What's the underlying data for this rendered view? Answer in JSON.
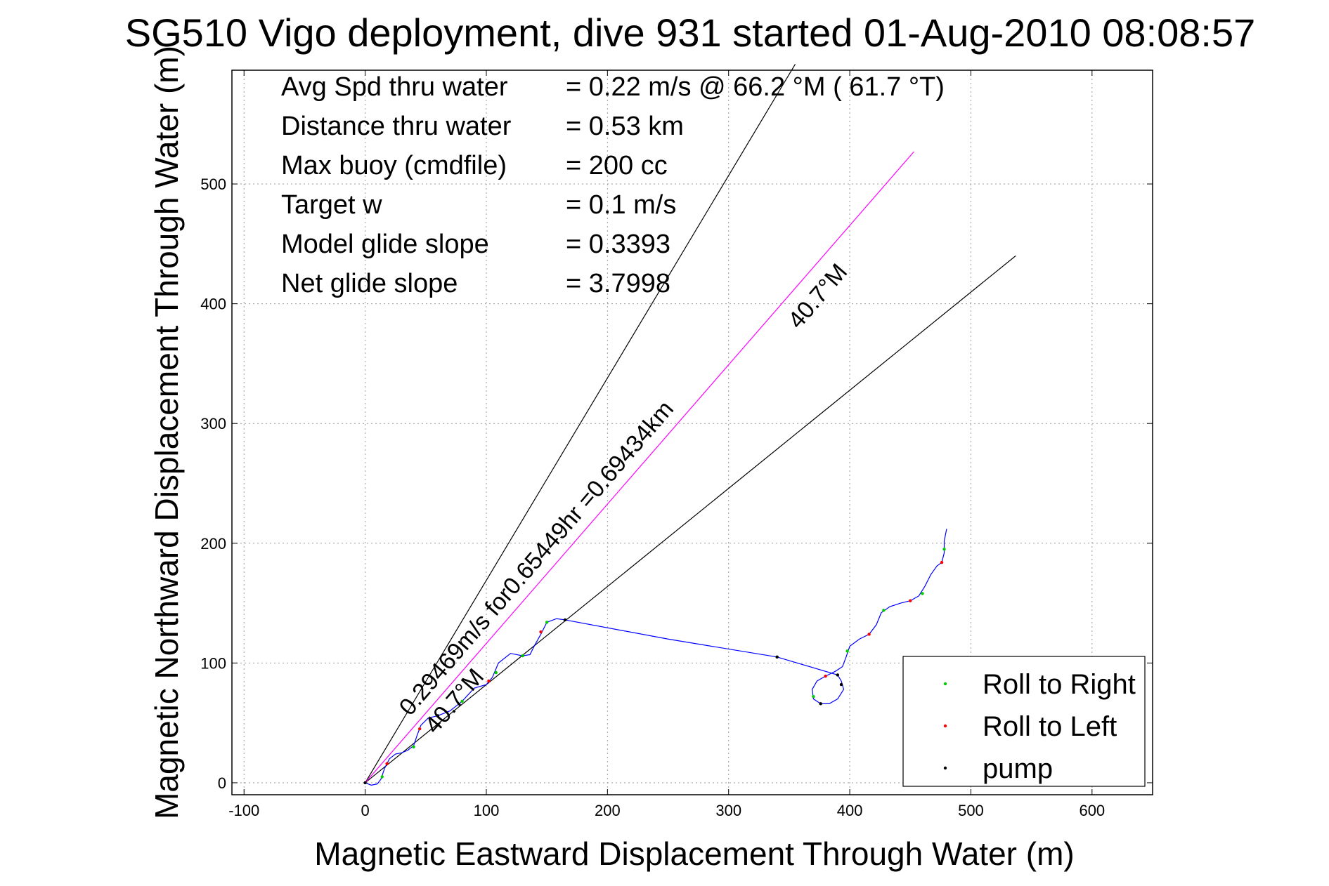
{
  "chart_data": {
    "type": "line",
    "title": "SG510 Vigo deployment, dive 931 started 01-Aug-2010 08:08:57",
    "xlabel": "Magnetic Eastward Displacement Through Water (m)",
    "ylabel": "Magnetic Northward Displacement Through Water (m)",
    "xlim": [
      -110,
      650
    ],
    "ylim": [
      -10,
      595
    ],
    "xticks": [
      -100,
      0,
      100,
      200,
      300,
      400,
      500,
      600
    ],
    "yticks": [
      0,
      100,
      200,
      300,
      400,
      500
    ],
    "grid": true,
    "info": [
      {
        "label": "Avg Spd thru water",
        "value": "=  0.22 m/s @  66.2 °M ( 61.7 °T)"
      },
      {
        "label": "Distance thru water",
        "value": "=  0.53 km"
      },
      {
        "label": "Max buoy (cmdfile)",
        "value": "= 200 cc"
      },
      {
        "label": "Target w",
        "value": "= 0.1 m/s"
      },
      {
        "label": "Model glide slope",
        "value": "= 0.3393"
      },
      {
        "label": "Net glide slope",
        "value": "= 3.7998"
      }
    ],
    "annotations": [
      {
        "text": "0.29469m/s for0.65449hr =0.69434km",
        "x": 37,
        "y": 55,
        "angle_deg": 49.3
      },
      {
        "text": "40.7°M",
        "x": 58,
        "y": 40,
        "angle_deg": 49.3
      },
      {
        "text": "40.7°M",
        "x": 358,
        "y": 378,
        "angle_deg": 49.3
      }
    ],
    "guide_lines": [
      {
        "name": "upper-guide",
        "color": "#000000",
        "points": [
          [
            0,
            0
          ],
          [
            355,
            600
          ]
        ]
      },
      {
        "name": "lower-guide",
        "color": "#000000",
        "points": [
          [
            0,
            0
          ],
          [
            537,
            440
          ]
        ]
      },
      {
        "name": "heading-line",
        "color": "#ff00ff",
        "points": [
          [
            0,
            0
          ],
          [
            453,
            527
          ]
        ]
      }
    ],
    "series": [
      {
        "name": "track",
        "color": "#0000ff",
        "points": [
          [
            0,
            0
          ],
          [
            5,
            -2
          ],
          [
            10,
            -1
          ],
          [
            13,
            3
          ],
          [
            16,
            12
          ],
          [
            20,
            20
          ],
          [
            25,
            24
          ],
          [
            30,
            25
          ],
          [
            35,
            27
          ],
          [
            40,
            31
          ],
          [
            43,
            40
          ],
          [
            46,
            48
          ],
          [
            52,
            54
          ],
          [
            60,
            56
          ],
          [
            70,
            60
          ],
          [
            80,
            68
          ],
          [
            90,
            79
          ],
          [
            100,
            82
          ],
          [
            105,
            88
          ],
          [
            110,
            100
          ],
          [
            120,
            108
          ],
          [
            130,
            106
          ],
          [
            136,
            107
          ],
          [
            140,
            115
          ],
          [
            145,
            124
          ],
          [
            150,
            134
          ],
          [
            158,
            137
          ],
          [
            165,
            136
          ],
          [
            250,
            120
          ],
          [
            340,
            105
          ],
          [
            390,
            90
          ],
          [
            393,
            85
          ],
          [
            395,
            78
          ],
          [
            390,
            70
          ],
          [
            383,
            66
          ],
          [
            376,
            66
          ],
          [
            370,
            70
          ],
          [
            369,
            78
          ],
          [
            373,
            85
          ],
          [
            380,
            89
          ],
          [
            388,
            93
          ],
          [
            394,
            97
          ],
          [
            397,
            105
          ],
          [
            400,
            114
          ],
          [
            408,
            120
          ],
          [
            416,
            124
          ],
          [
            422,
            132
          ],
          [
            426,
            142
          ],
          [
            433,
            147
          ],
          [
            442,
            150
          ],
          [
            450,
            152
          ],
          [
            457,
            156
          ],
          [
            462,
            164
          ],
          [
            467,
            174
          ],
          [
            472,
            181
          ],
          [
            476,
            184
          ],
          [
            478,
            192
          ],
          [
            478,
            202
          ],
          [
            480,
            212
          ]
        ]
      },
      {
        "name": "Roll to Right",
        "color": "#00cc00",
        "points": [
          [
            14,
            5
          ],
          [
            40,
            30
          ],
          [
            80,
            68
          ],
          [
            108,
            92
          ],
          [
            130,
            106
          ],
          [
            150,
            134
          ],
          [
            340,
            105
          ],
          [
            370,
            72
          ],
          [
            398,
            110
          ],
          [
            428,
            144
          ],
          [
            460,
            158
          ],
          [
            478,
            195
          ]
        ]
      },
      {
        "name": "Roll to Left",
        "color": "#ff0000",
        "points": [
          [
            18,
            16
          ],
          [
            45,
            45
          ],
          [
            102,
            85
          ],
          [
            145,
            126
          ],
          [
            380,
            89
          ],
          [
            416,
            124
          ],
          [
            450,
            152
          ],
          [
            476,
            184
          ]
        ]
      },
      {
        "name": "pump",
        "color": "#000000",
        "points": [
          [
            0,
            0
          ],
          [
            60,
            56
          ],
          [
            165,
            136
          ],
          [
            340,
            105
          ],
          [
            390,
            90
          ],
          [
            393,
            82
          ],
          [
            376,
            66
          ]
        ]
      }
    ],
    "legend": {
      "placement": "bottom-right",
      "entries": [
        "Roll to Right",
        "Roll to Left",
        "pump"
      ]
    }
  }
}
